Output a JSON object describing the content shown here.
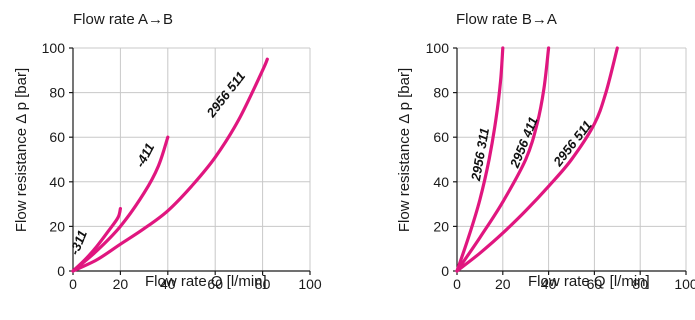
{
  "chart_data": [
    {
      "type": "line",
      "title": "Flow rate A→B",
      "xlabel": "Flow rate Q [l/min]",
      "ylabel": "Flow resistance Δ p [bar]",
      "xlim": [
        0,
        100
      ],
      "ylim": [
        0,
        100
      ],
      "xticks": [
        "0",
        "20",
        "40",
        "60",
        "80",
        "100"
      ],
      "yticks": [
        "0",
        "20",
        "40",
        "60",
        "80",
        "100"
      ],
      "grid": true,
      "color": "#e0167f",
      "series": [
        {
          "name": "-311",
          "x": [
            0,
            5,
            10,
            15,
            19,
            20
          ],
          "y": [
            0,
            5,
            11,
            18,
            24,
            28
          ]
        },
        {
          "name": "-411",
          "x": [
            0,
            10,
            20,
            30,
            36,
            40
          ],
          "y": [
            0,
            9,
            20,
            35,
            47,
            60
          ]
        },
        {
          "name": "2956 511",
          "x": [
            0,
            10,
            20,
            30,
            40,
            50,
            60,
            70,
            80,
            82
          ],
          "y": [
            0,
            5,
            12,
            19,
            27,
            38,
            51,
            68,
            90,
            95
          ]
        }
      ]
    },
    {
      "type": "line",
      "title": "Flow rate B→A",
      "xlabel": "Flow rate Q [l/min]",
      "ylabel": "Flow resistance Δ p [bar]",
      "xlim": [
        0,
        100
      ],
      "ylim": [
        0,
        100
      ],
      "xticks": [
        "0",
        "20",
        "40",
        "60",
        "80",
        "100"
      ],
      "yticks": [
        "0",
        "20",
        "40",
        "60",
        "80",
        "100"
      ],
      "grid": true,
      "color": "#e0167f",
      "series": [
        {
          "name": "2956 311",
          "x": [
            0,
            5,
            10,
            14,
            17,
            19,
            20
          ],
          "y": [
            0,
            15,
            32,
            50,
            68,
            85,
            100
          ]
        },
        {
          "name": "2956 411",
          "x": [
            0,
            10,
            20,
            30,
            35,
            38,
            40
          ],
          "y": [
            0,
            15,
            31,
            50,
            66,
            82,
            100
          ]
        },
        {
          "name": "2956 511",
          "x": [
            0,
            10,
            20,
            30,
            40,
            50,
            60,
            65,
            70
          ],
          "y": [
            0,
            8,
            17,
            27,
            38,
            50,
            66,
            80,
            100
          ]
        }
      ]
    }
  ]
}
